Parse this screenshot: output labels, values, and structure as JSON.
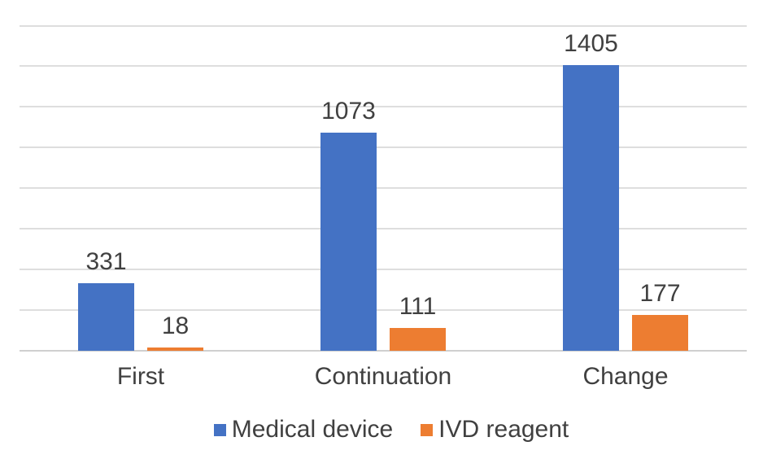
{
  "chart_data": {
    "type": "bar",
    "title": "",
    "xlabel": "",
    "ylabel": "",
    "categories": [
      "First",
      "Continuation",
      "Change"
    ],
    "series": [
      {
        "name": "Medical device",
        "color": "#4472C4",
        "values": [
          331,
          1073,
          1405
        ]
      },
      {
        "name": "IVD reagent",
        "color": "#ED7D31",
        "values": [
          18,
          111,
          177
        ]
      }
    ],
    "data_labels": [
      "331",
      "18",
      "1073",
      "111",
      "1405",
      "177"
    ],
    "ylim": [
      0,
      1600
    ],
    "gridline_step": 200,
    "y_axis_tick_labels_visible": false,
    "grid": true,
    "legend_position": "bottom",
    "colors": {
      "background": "#ffffff",
      "text": "#404040",
      "gridline": "#dedede",
      "axis_line": "#cfcfcf"
    }
  }
}
